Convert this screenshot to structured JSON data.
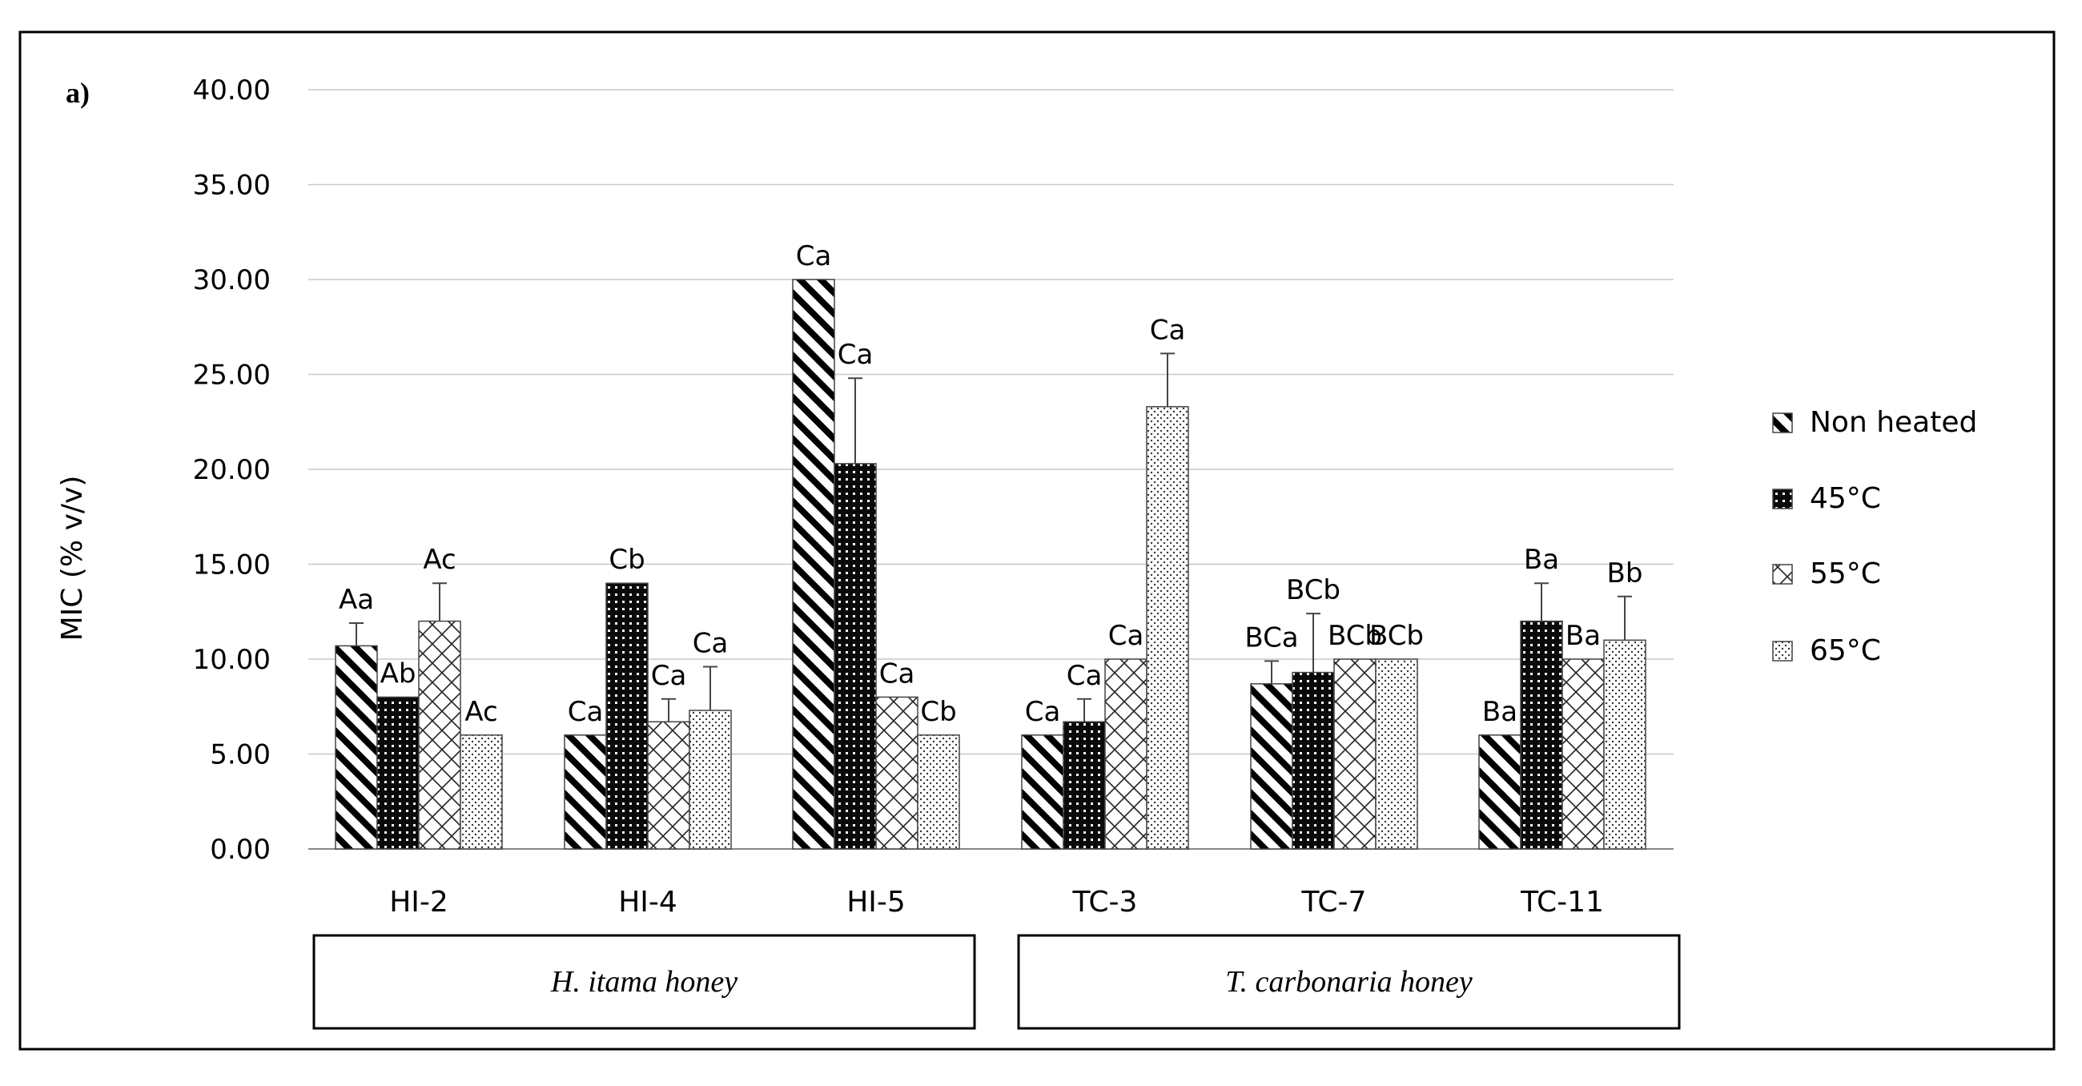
{
  "chart_data": {
    "type": "bar",
    "panel_label": "a)",
    "title": "",
    "xlabel": "",
    "ylabel": "MIC (% v/v)",
    "ylim": [
      0,
      40
    ],
    "yticks": [
      "0.00",
      "5.00",
      "10.00",
      "15.00",
      "20.00",
      "25.00",
      "30.00",
      "35.00",
      "40.00"
    ],
    "grid": true,
    "legend_position": "right",
    "categories": [
      "HI-2",
      "HI-4",
      "HI-5",
      "TC-3",
      "TC-7",
      "TC-11"
    ],
    "groups": [
      {
        "label": "H. itama honey",
        "categories": [
          "HI-2",
          "HI-4",
          "HI-5"
        ]
      },
      {
        "label": "T. carbonaria honey",
        "categories": [
          "TC-3",
          "TC-7",
          "TC-11"
        ]
      }
    ],
    "series": [
      {
        "name": "Non heated",
        "pattern": "diagonal-stripes",
        "values": [
          10.7,
          6.0,
          30.0,
          6.0,
          8.7,
          6.0
        ],
        "errors": [
          1.2,
          0.0,
          0.0,
          0.0,
          1.2,
          0.0
        ],
        "labels": [
          "Aa",
          "Ca",
          "Ca",
          "Ca",
          "BCa",
          "Ba"
        ]
      },
      {
        "name": "45°C",
        "pattern": "black-dots",
        "values": [
          8.0,
          14.0,
          20.3,
          6.7,
          9.3,
          12.0
        ],
        "errors": [
          0.0,
          0.0,
          4.5,
          1.2,
          3.1,
          2.0
        ],
        "labels": [
          "Ab",
          "Cb",
          "Ca",
          "Ca",
          "BCb",
          "Ba"
        ]
      },
      {
        "name": "55°C",
        "pattern": "crosshatch",
        "values": [
          12.0,
          6.7,
          8.0,
          10.0,
          10.0,
          10.0
        ],
        "errors": [
          2.0,
          1.2,
          0.0,
          0.0,
          0.0,
          0.0
        ],
        "labels": [
          "Ac",
          "Ca",
          "Ca",
          "Ca",
          "BCb",
          "Ba"
        ]
      },
      {
        "name": "65°C",
        "pattern": "fine-dots",
        "values": [
          6.0,
          7.3,
          6.0,
          23.3,
          10.0,
          11.0
        ],
        "errors": [
          0.0,
          2.3,
          0.0,
          2.8,
          0.0,
          2.3
        ],
        "labels": [
          "Ac",
          "Ca",
          "Cb",
          "Ca",
          "BCb",
          "Bb"
        ]
      }
    ]
  }
}
